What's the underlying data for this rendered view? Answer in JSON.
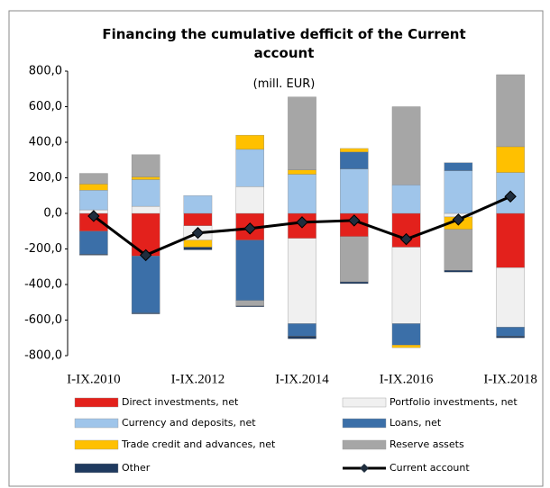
{
  "chart_data": {
    "type": "bar",
    "title": "Financing  the cumulative  defficit of the Current account",
    "subtitle": "(mill. EUR)",
    "categories": [
      "I-IX.2010",
      null,
      "I-IX.2012",
      null,
      "I-IX.2014",
      null,
      "I-IX.2016",
      null,
      "I-IX.2018"
    ],
    "stacked": true,
    "ylim": [
      -800,
      800
    ],
    "yticks": [
      {
        "value": -800,
        "label": "-800,0"
      },
      {
        "value": -600,
        "label": "-600,0"
      },
      {
        "value": -400,
        "label": "-400,0"
      },
      {
        "value": -200,
        "label": "-200,0"
      },
      {
        "value": 0,
        "label": "0,0"
      },
      {
        "value": 200,
        "label": "200,0"
      },
      {
        "value": 400,
        "label": "400,0"
      },
      {
        "value": 600,
        "label": "600,0"
      },
      {
        "value": 800,
        "label": "800,0"
      }
    ],
    "series": [
      {
        "name": "Direct investments, net",
        "color": "#e3211c",
        "values": [
          -100,
          -240,
          -70,
          -150,
          -140,
          -130,
          -190,
          0,
          -305
        ]
      },
      {
        "name": "Portfolio investments, net",
        "color": "#f0f0f0",
        "values": [
          20,
          40,
          -80,
          150,
          -480,
          0,
          -430,
          -20,
          -335
        ]
      },
      {
        "name": "Currency and deposits, net",
        "color": "#9fc5ea",
        "values": [
          110,
          150,
          100,
          210,
          220,
          250,
          160,
          240,
          230
        ]
      },
      {
        "name": "Loans, net",
        "color": "#3b6fa8",
        "values": [
          -130,
          -320,
          0,
          -340,
          -70,
          95,
          -120,
          45,
          -50
        ]
      },
      {
        "name": "Trade credit and advances, net",
        "color": "#ffc000",
        "values": [
          35,
          15,
          -40,
          80,
          25,
          20,
          -15,
          -70,
          145
        ]
      },
      {
        "name": "Reserve assets",
        "color": "#a6a6a6",
        "values": [
          60,
          125,
          0,
          -30,
          410,
          -255,
          440,
          -230,
          405
        ]
      },
      {
        "name": "Other",
        "color": "#1f3a5f",
        "values": [
          -5,
          -5,
          -15,
          -5,
          -15,
          -10,
          0,
          -10,
          -10
        ]
      },
      {
        "name": "Current account",
        "color": "#000000",
        "type": "line",
        "values": [
          -15,
          -235,
          -110,
          -85,
          -50,
          -40,
          -145,
          -35,
          95
        ]
      }
    ]
  }
}
